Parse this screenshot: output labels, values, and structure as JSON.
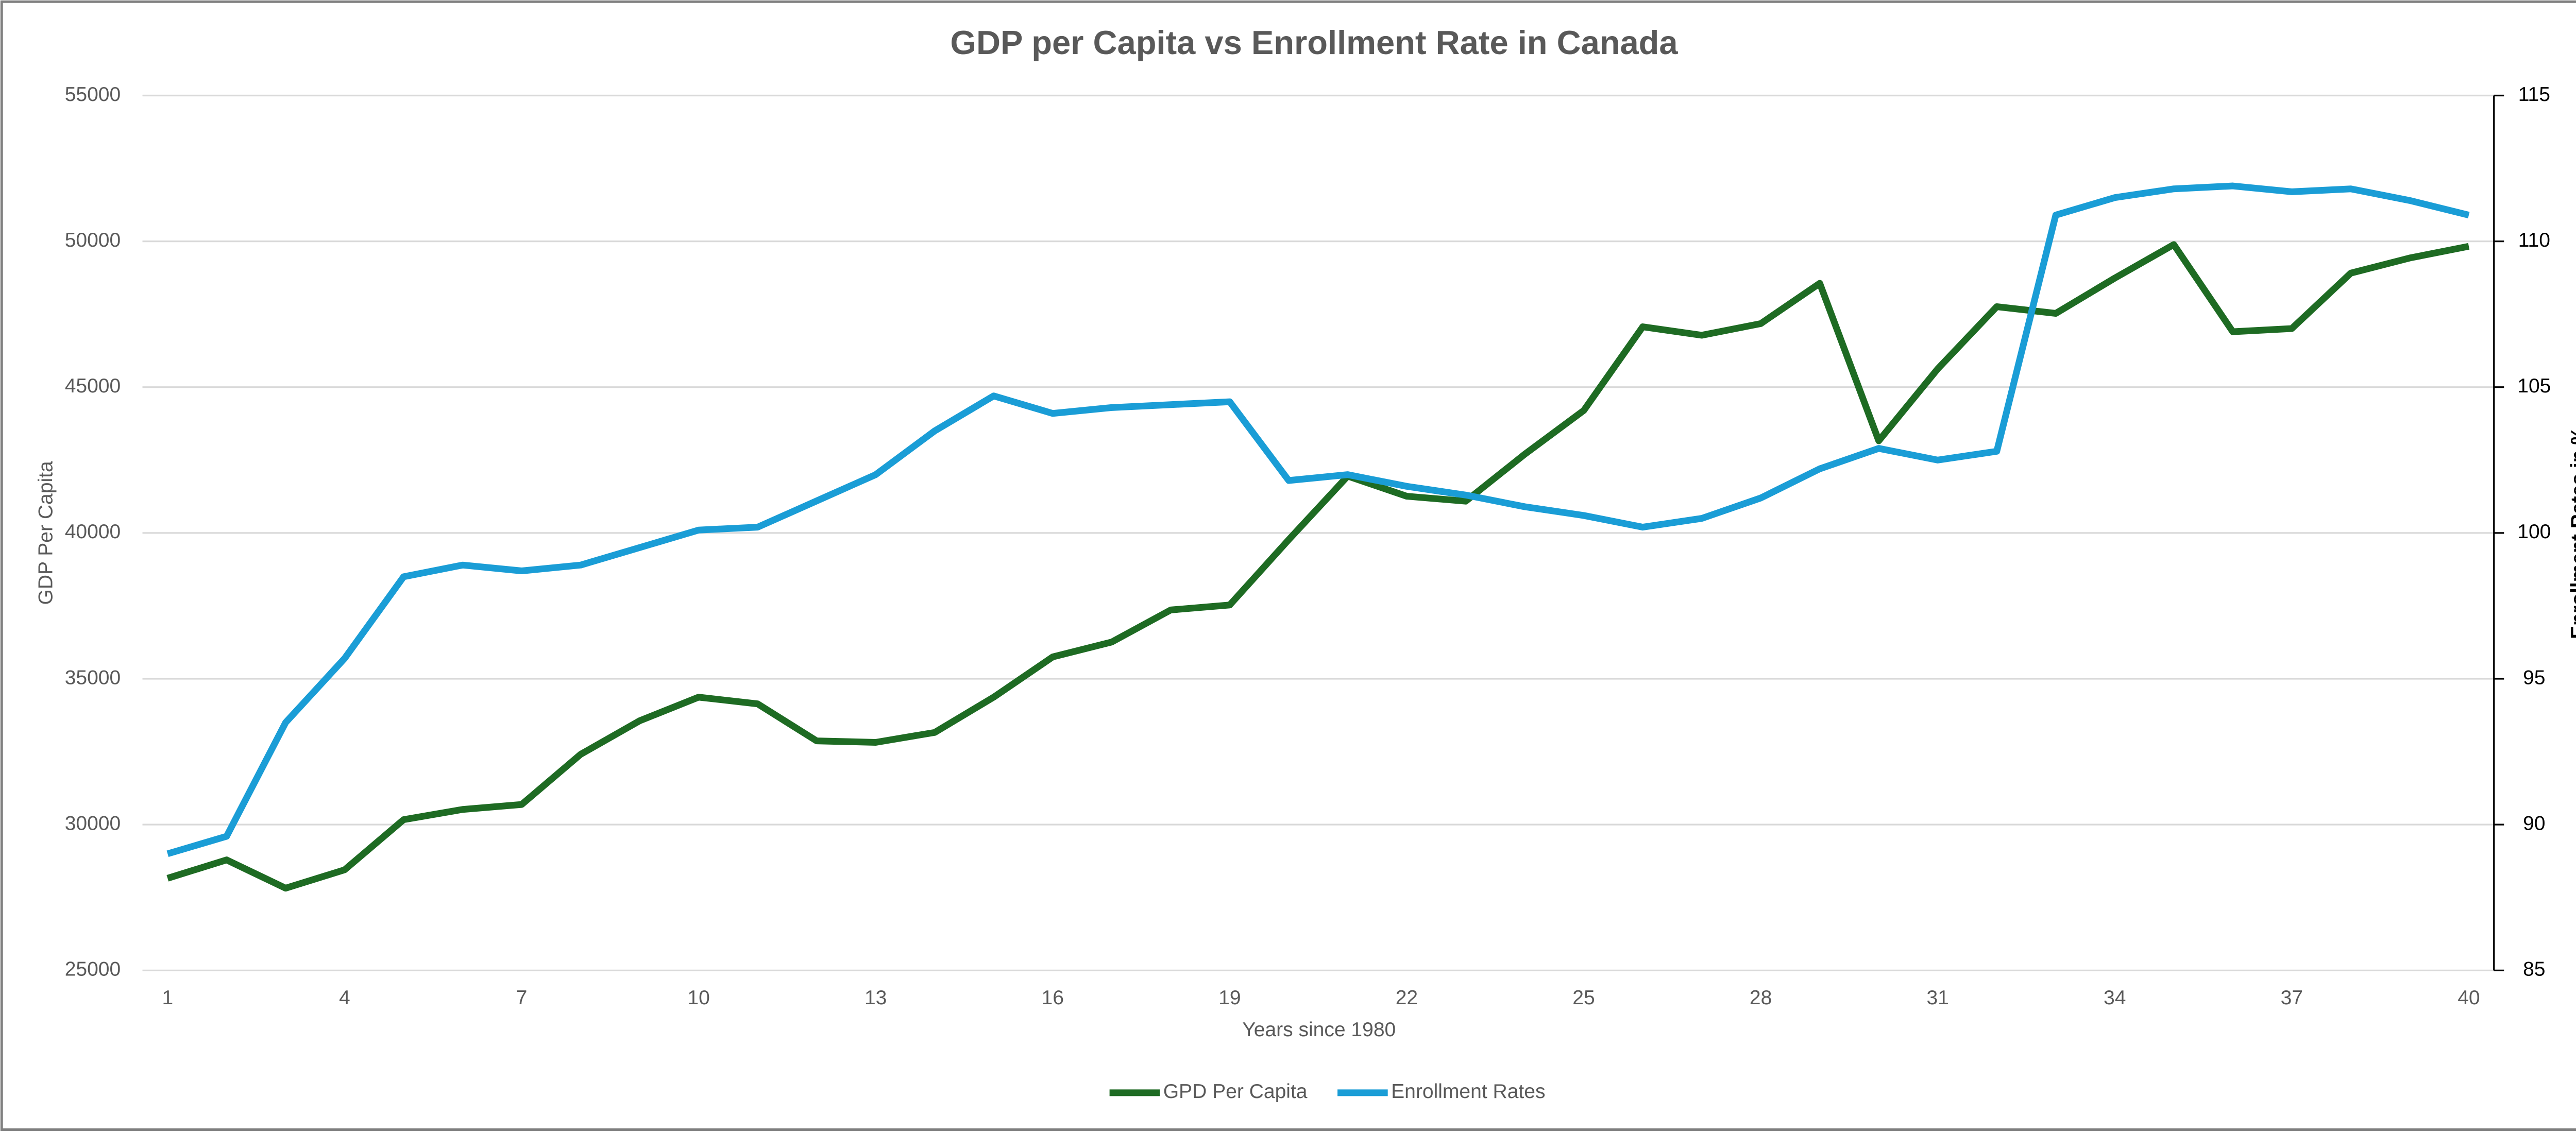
{
  "chart_data": {
    "type": "line",
    "title": "GDP per Capita vs Enrollment Rate in Canada",
    "x_label": "Years since 1980",
    "y_label": "GDP Per Capita",
    "y2_label": "Enrollment  Rates in %",
    "categories": [
      "1",
      null,
      null,
      "4",
      null,
      null,
      "7",
      null,
      null,
      "10",
      null,
      null,
      "13",
      null,
      null,
      "16",
      null,
      null,
      "19",
      null,
      null,
      "22",
      null,
      null,
      "25",
      null,
      null,
      "28",
      null,
      null,
      "31",
      null,
      null,
      "34",
      null,
      null,
      "37",
      null,
      null,
      "40"
    ],
    "series": [
      {
        "name": "GPD Per Capita",
        "color": "#1e6b23",
        "values": [
          28160,
          28790,
          27820,
          28450,
          30170,
          30520,
          30690,
          32410,
          33560,
          34370,
          34140,
          32870,
          32820,
          33160,
          34370,
          35750,
          36260,
          37360,
          37530,
          39770,
          41950,
          41260,
          41090,
          42700,
          44200,
          47070,
          46780,
          47180,
          48560,
          43160,
          45630,
          47760,
          47530,
          48740,
          49890,
          46900,
          47010,
          48910,
          49430,
          49830
        ]
      },
      {
        "name": "Enrollment Rates",
        "color": "#1a9dd6",
        "axis": "y2",
        "values": [
          89.0,
          89.6,
          93.5,
          95.7,
          98.5,
          98.9,
          98.7,
          98.9,
          99.5,
          100.1,
          100.2,
          101.1,
          102.0,
          103.5,
          104.7,
          104.1,
          104.3,
          104.4,
          104.5,
          101.8,
          102.0,
          101.6,
          101.3,
          100.9,
          100.6,
          100.2,
          100.5,
          101.2,
          102.2,
          102.9,
          102.5,
          102.8,
          110.9,
          111.5,
          111.8,
          111.9,
          111.7,
          111.8,
          111.4,
          110.9
        ]
      }
    ],
    "ylim": [
      25000,
      55000
    ],
    "yticks": [
      25000,
      30000,
      35000,
      40000,
      45000,
      50000,
      55000
    ],
    "y2lim": [
      85,
      115
    ],
    "y2ticks": [
      85,
      90,
      95,
      100,
      105,
      110,
      115
    ],
    "grid": true,
    "legend": "bottom"
  }
}
